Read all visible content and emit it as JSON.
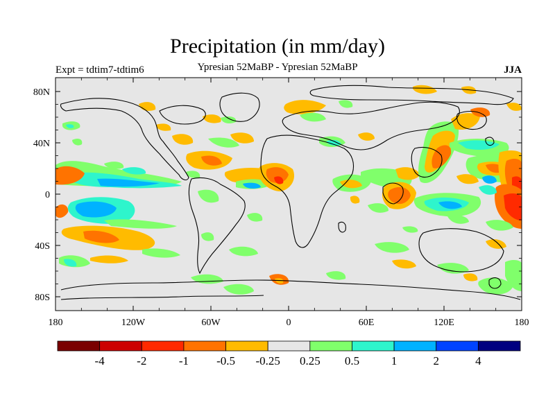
{
  "title": "Precipitation (in mm/day)",
  "subtitle": "Ypresian  52MaBP - Ypresian  52MaBP",
  "left_label": "Expt = tdtim7-tdtim6",
  "right_label": "JJA",
  "axes": {
    "y_ticks": [
      "80N",
      "40N",
      "0",
      "40S",
      "80S"
    ],
    "x_ticks": [
      "180",
      "120W",
      "60W",
      "0",
      "60E",
      "120E",
      "180"
    ]
  },
  "colorbar": {
    "colors": [
      "#7a0000",
      "#cc0000",
      "#ff2a00",
      "#ff7300",
      "#ffbb00",
      "#e6e6e6",
      "#80ff6b",
      "#2ef5cc",
      "#00b2ff",
      "#0043ff",
      "#000080"
    ],
    "labels": [
      "-4",
      "-2",
      "-1",
      "-0.5",
      "-0.25",
      "0.25",
      "0.5",
      "1",
      "2",
      "4"
    ]
  },
  "map_colors": {
    "background": "#e6e6e6",
    "orange": "#ffbb00",
    "dark_orange": "#ff7300",
    "red": "#ff2a00",
    "green": "#80ff6b",
    "teal": "#2ef5cc",
    "blue": "#00b2ff"
  }
}
